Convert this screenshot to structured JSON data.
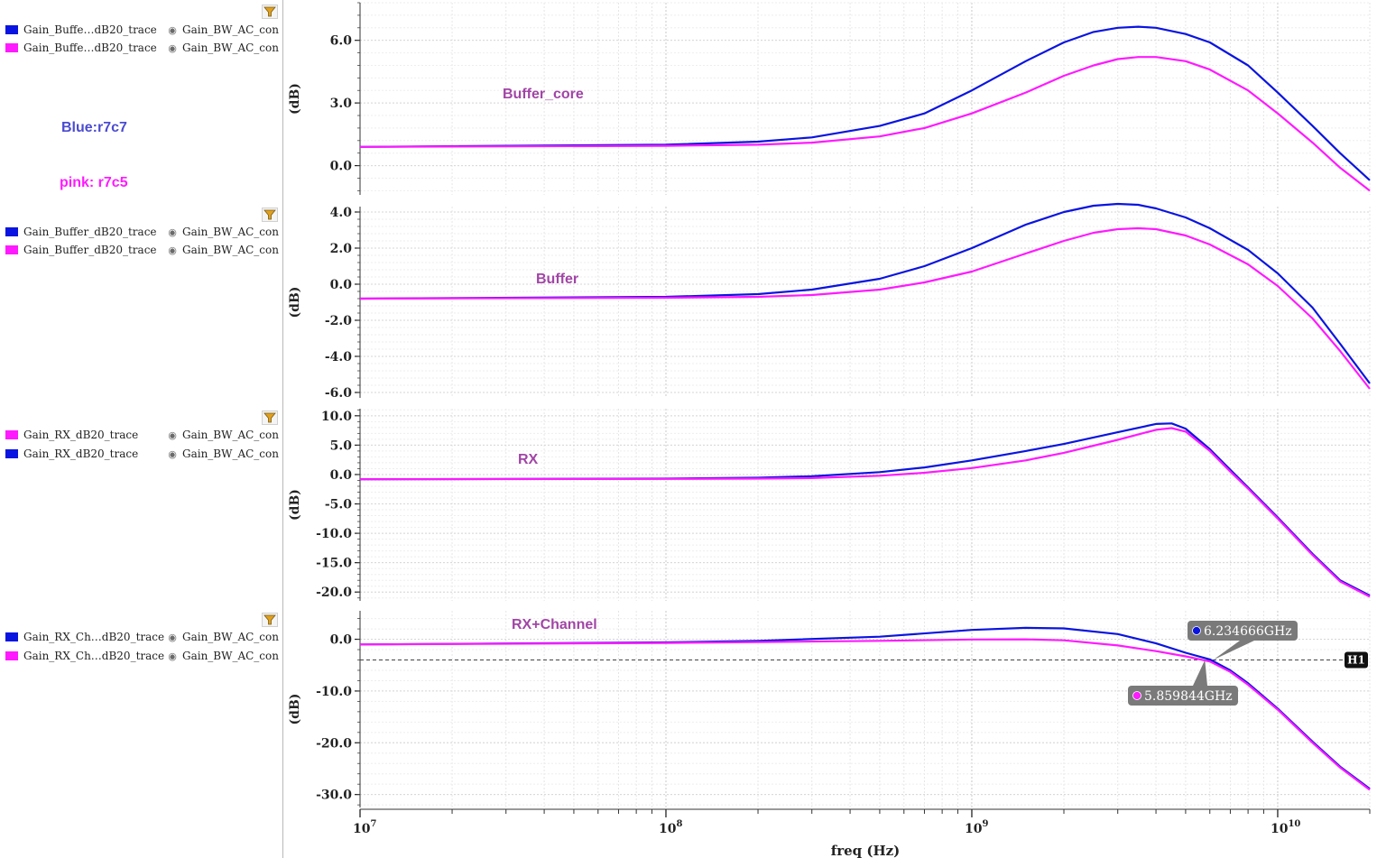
{
  "legend_groups": [
    {
      "rows": [
        {
          "name": "Gain_Buffe…dB20_trace",
          "source": "Gain_BW_AC_con:",
          "color": "#0a14e0"
        },
        {
          "name": "Gain_Buffe…dB20_trace",
          "source": "Gain_BW_AC_con:",
          "color": "#ff1aff"
        }
      ]
    },
    {
      "rows": [
        {
          "name": "Gain_Buffer_dB20_trace",
          "source": "Gain_BW_AC_con:",
          "color": "#0a14e0"
        },
        {
          "name": "Gain_Buffer_dB20_trace",
          "source": "Gain_BW_AC_con:",
          "color": "#ff1aff"
        }
      ]
    },
    {
      "rows": [
        {
          "name": "Gain_RX_dB20_trace",
          "source": "Gain_BW_AC_con:",
          "color": "#ff1aff"
        },
        {
          "name": "Gain_RX_dB20_trace",
          "source": "Gain_BW_AC_con:",
          "color": "#0a14e0"
        }
      ]
    },
    {
      "rows": [
        {
          "name": "Gain_RX_Ch…dB20_trace",
          "source": "Gain_BW_AC_con:",
          "color": "#0a14e0"
        },
        {
          "name": "Gain_RX_Ch…dB20_trace",
          "source": "Gain_BW_AC_con:",
          "color": "#ff1aff"
        }
      ]
    }
  ],
  "notes": {
    "blue": "Blue:r7c7",
    "pink": "pink: r7c5",
    "blue_color": "#4b4bd1",
    "pink_color": "#ff1aff"
  },
  "icons": {
    "visibility": "eye-icon",
    "filter": "filter-icon"
  },
  "chart_data": [
    {
      "type": "line",
      "title": "Buffer_core",
      "ylabel": "(dB)",
      "xscale": "log",
      "xlim": [
        10000000.0,
        20000000000.0
      ],
      "ylim": [
        -1.4,
        7.8
      ],
      "yticks": [
        0,
        3,
        6
      ],
      "ytick_labels": [
        "0.0",
        "3.0",
        "6.0"
      ],
      "grid": true,
      "series": [
        {
          "color": "#0a14e0",
          "x": [
            10000000.0,
            100000000.0,
            200000000.0,
            300000000.0,
            500000000.0,
            700000000.0,
            1000000000.0,
            1500000000.0,
            2000000000.0,
            2500000000.0,
            3000000000.0,
            3500000000.0,
            4000000000.0,
            5000000000.0,
            6000000000.0,
            8000000000.0,
            10000000000.0,
            13000000000.0,
            16000000000.0,
            20000000000.0
          ],
          "y": [
            0.9,
            1.0,
            1.15,
            1.35,
            1.9,
            2.5,
            3.6,
            5.0,
            5.9,
            6.4,
            6.6,
            6.65,
            6.6,
            6.3,
            5.9,
            4.8,
            3.5,
            1.9,
            0.6,
            -0.7
          ]
        },
        {
          "color": "#ff1aff",
          "x": [
            10000000.0,
            100000000.0,
            200000000.0,
            300000000.0,
            500000000.0,
            700000000.0,
            1000000000.0,
            1500000000.0,
            2000000000.0,
            2500000000.0,
            3000000000.0,
            3500000000.0,
            4000000000.0,
            5000000000.0,
            6000000000.0,
            8000000000.0,
            10000000000.0,
            13000000000.0,
            16000000000.0,
            20000000000.0
          ],
          "y": [
            0.9,
            0.95,
            1.0,
            1.1,
            1.4,
            1.8,
            2.5,
            3.5,
            4.3,
            4.8,
            5.1,
            5.2,
            5.2,
            5.0,
            4.6,
            3.6,
            2.5,
            1.1,
            -0.1,
            -1.2
          ]
        }
      ]
    },
    {
      "type": "line",
      "title": "Buffer",
      "ylabel": "(dB)",
      "xscale": "log",
      "xlim": [
        10000000.0,
        20000000000.0
      ],
      "ylim": [
        -6.3,
        4.3
      ],
      "yticks": [
        -6,
        -4,
        -2,
        0,
        2,
        4
      ],
      "ytick_labels": [
        "-6.0",
        "-4.0",
        "-2.0",
        "0.0",
        "2.0",
        "4.0"
      ],
      "grid": true,
      "series": [
        {
          "color": "#0a14e0",
          "x": [
            10000000.0,
            100000000.0,
            200000000.0,
            300000000.0,
            500000000.0,
            700000000.0,
            1000000000.0,
            1500000000.0,
            2000000000.0,
            2500000000.0,
            3000000000.0,
            3500000000.0,
            4000000000.0,
            5000000000.0,
            6000000000.0,
            8000000000.0,
            10000000000.0,
            13000000000.0,
            16000000000.0,
            20000000000.0
          ],
          "y": [
            -0.8,
            -0.7,
            -0.55,
            -0.3,
            0.3,
            1.0,
            2.0,
            3.3,
            4.0,
            4.35,
            4.45,
            4.4,
            4.2,
            3.7,
            3.1,
            1.9,
            0.6,
            -1.3,
            -3.3,
            -5.5
          ]
        },
        {
          "color": "#ff1aff",
          "x": [
            10000000.0,
            100000000.0,
            200000000.0,
            300000000.0,
            500000000.0,
            700000000.0,
            1000000000.0,
            1500000000.0,
            2000000000.0,
            2500000000.0,
            3000000000.0,
            3500000000.0,
            4000000000.0,
            5000000000.0,
            6000000000.0,
            8000000000.0,
            10000000000.0,
            13000000000.0,
            16000000000.0,
            20000000000.0
          ],
          "y": [
            -0.8,
            -0.75,
            -0.7,
            -0.6,
            -0.3,
            0.1,
            0.7,
            1.7,
            2.4,
            2.85,
            3.05,
            3.1,
            3.05,
            2.7,
            2.2,
            1.1,
            -0.1,
            -1.9,
            -3.7,
            -5.8
          ]
        }
      ]
    },
    {
      "type": "line",
      "title": "RX",
      "ylabel": "(dB)",
      "xscale": "log",
      "xlim": [
        10000000.0,
        20000000000.0
      ],
      "ylim": [
        -21.5,
        11.2
      ],
      "yticks": [
        -20,
        -15,
        -10,
        -5,
        0,
        5,
        10
      ],
      "ytick_labels": [
        "-20.0",
        "-15.0",
        "-10.0",
        "-5.0",
        "0.0",
        "5.0",
        "10.0"
      ],
      "grid": true,
      "series": [
        {
          "color": "#0a14e0",
          "x": [
            10000000.0,
            100000000.0,
            200000000.0,
            300000000.0,
            500000000.0,
            700000000.0,
            1000000000.0,
            1500000000.0,
            2000000000.0,
            3000000000.0,
            4000000000.0,
            4500000000.0,
            5000000000.0,
            6000000000.0,
            7000000000.0,
            8000000000.0,
            10000000000.0,
            13000000000.0,
            16000000000.0,
            20000000000.0
          ],
          "y": [
            -0.8,
            -0.7,
            -0.55,
            -0.3,
            0.4,
            1.2,
            2.4,
            4.0,
            5.2,
            7.2,
            8.6,
            8.7,
            7.8,
            4.3,
            0.8,
            -2.2,
            -7.3,
            -13.5,
            -18.0,
            -20.6
          ]
        },
        {
          "color": "#ff1aff",
          "x": [
            10000000.0,
            100000000.0,
            200000000.0,
            300000000.0,
            500000000.0,
            700000000.0,
            1000000000.0,
            1500000000.0,
            2000000000.0,
            3000000000.0,
            4000000000.0,
            4500000000.0,
            5000000000.0,
            6000000000.0,
            7000000000.0,
            8000000000.0,
            10000000000.0,
            13000000000.0,
            16000000000.0,
            20000000000.0
          ],
          "y": [
            -0.8,
            -0.75,
            -0.7,
            -0.6,
            -0.2,
            0.3,
            1.1,
            2.4,
            3.7,
            5.9,
            7.6,
            7.9,
            7.3,
            4.0,
            0.5,
            -2.4,
            -7.5,
            -13.7,
            -18.2,
            -20.8
          ]
        }
      ]
    },
    {
      "type": "line",
      "title": "RX+Channel",
      "ylabel": "(dB)",
      "xscale": "log",
      "xlim": [
        10000000.0,
        20000000000.0
      ],
      "ylim": [
        -32.5,
        5.5
      ],
      "yticks": [
        -30,
        -20,
        -10,
        0
      ],
      "ytick_labels": [
        "-30.0",
        "-20.0",
        "-10.0",
        "0.0"
      ],
      "grid": true,
      "h_marker": {
        "label": "H1",
        "y": -4
      },
      "markers": [
        {
          "label": "6.234666GHz",
          "x": 6234666000.0,
          "color": "#0a14e0"
        },
        {
          "label": "5.859844GHz",
          "x": 5859844000.0,
          "color": "#ff1aff"
        }
      ],
      "series": [
        {
          "color": "#0a14e0",
          "x": [
            10000000.0,
            100000000.0,
            200000000.0,
            500000000.0,
            1000000000.0,
            1500000000.0,
            2000000000.0,
            3000000000.0,
            4000000000.0,
            5000000000.0,
            6000000000.0,
            7000000000.0,
            8000000000.0,
            10000000000.0,
            13000000000.0,
            16000000000.0,
            20000000000.0
          ],
          "y": [
            -1.0,
            -0.6,
            -0.3,
            0.5,
            1.8,
            2.2,
            2.1,
            1.0,
            -0.8,
            -2.6,
            -3.9,
            -6.0,
            -8.5,
            -13.4,
            -19.8,
            -24.6,
            -28.9
          ]
        },
        {
          "color": "#ff1aff",
          "x": [
            10000000.0,
            100000000.0,
            200000000.0,
            500000000.0,
            1000000000.0,
            1500000000.0,
            2000000000.0,
            3000000000.0,
            4000000000.0,
            5000000000.0,
            6000000000.0,
            7000000000.0,
            8000000000.0,
            10000000000.0,
            13000000000.0,
            16000000000.0,
            20000000000.0
          ],
          "y": [
            -1.0,
            -0.7,
            -0.55,
            -0.3,
            -0.05,
            0.0,
            -0.2,
            -1.2,
            -2.3,
            -3.3,
            -4.3,
            -6.3,
            -8.8,
            -13.6,
            -20.0,
            -24.8,
            -29.1
          ]
        }
      ]
    }
  ],
  "x_axis": {
    "label": "freq (Hz)",
    "decades": [
      {
        "base": "10",
        "exp": "7"
      },
      {
        "base": "10",
        "exp": "8"
      },
      {
        "base": "10",
        "exp": "9"
      },
      {
        "base": "10",
        "exp": "10"
      }
    ]
  }
}
